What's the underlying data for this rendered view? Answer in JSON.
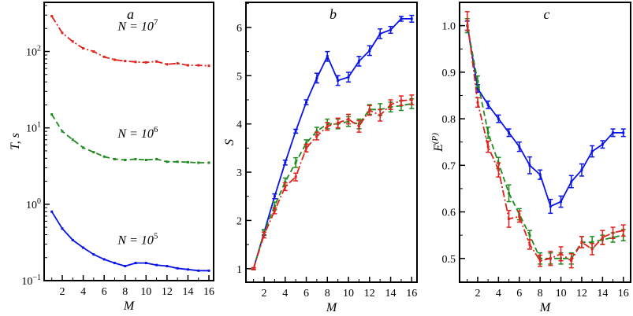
{
  "colors": {
    "n7": "#e3211c",
    "n6": "#1f8a1f",
    "n5": "#0a14e6",
    "frame": "#000000"
  },
  "chart_data": [
    {
      "type": "line",
      "panel": "a",
      "xlabel": "M",
      "ylabel": "T, s",
      "yscale": "log",
      "xlim": [
        0.27,
        16.45
      ],
      "ylim": [
        0.1,
        440
      ],
      "xticks": [
        2,
        4,
        6,
        8,
        10,
        12,
        14,
        16
      ],
      "xtick_labels": [
        "2",
        "4",
        "6",
        "8",
        "10",
        "12",
        "14",
        "16"
      ],
      "yticks": [
        {
          "value": 100,
          "base": "10",
          "exp": "2"
        },
        {
          "value": 10,
          "base": "10",
          "exp": "1"
        },
        {
          "value": 1,
          "base": "10",
          "exp": "0"
        },
        {
          "value": 0.1,
          "base": "10",
          "exp": "−1"
        }
      ],
      "x": [
        1,
        2,
        3,
        4,
        5,
        6,
        7,
        8,
        9,
        10,
        11,
        12,
        13,
        14,
        15,
        16
      ],
      "series": [
        {
          "name": "N = 10^7",
          "color_key": "n7",
          "dash": "dashdot",
          "label": {
            "base": "N = 10",
            "exp": "7"
          },
          "label_at": [
            7.3,
            190
          ],
          "values": [
            290,
            175,
            135,
            110,
            100,
            85,
            78,
            75,
            73,
            72,
            74,
            68,
            70,
            66,
            66,
            65
          ]
        },
        {
          "name": "N = 10^6",
          "color_key": "n6",
          "dash": "dash",
          "label": {
            "base": "N = 10",
            "exp": "6"
          },
          "label_at": [
            7.3,
            7.5
          ],
          "values": [
            15,
            9,
            7,
            5.5,
            4.8,
            4.2,
            3.9,
            3.8,
            3.9,
            3.8,
            3.9,
            3.6,
            3.6,
            3.55,
            3.5,
            3.5
          ]
        },
        {
          "name": "N = 10^5",
          "color_key": "n5",
          "dash": "solid",
          "label": {
            "base": "N = 10",
            "exp": "5"
          },
          "label_at": [
            7.3,
            0.3
          ],
          "values": [
            0.8,
            0.48,
            0.34,
            0.27,
            0.22,
            0.19,
            0.17,
            0.155,
            0.17,
            0.17,
            0.16,
            0.155,
            0.145,
            0.14,
            0.135,
            0.135
          ]
        }
      ]
    },
    {
      "type": "line",
      "panel": "b",
      "xlabel": "M",
      "ylabel": "S",
      "yscale": "linear",
      "xlim": [
        0.28,
        16.5
      ],
      "ylim": [
        0.72,
        6.52
      ],
      "xticks": [
        2,
        4,
        6,
        8,
        10,
        12,
        14,
        16
      ],
      "xtick_labels": [
        "2",
        "4",
        "6",
        "8",
        "10",
        "12",
        "14",
        "16"
      ],
      "yticks": [
        {
          "value": 1,
          "label": "1"
        },
        {
          "value": 2,
          "label": "2"
        },
        {
          "value": 3,
          "label": "3"
        },
        {
          "value": 4,
          "label": "4"
        },
        {
          "value": 5,
          "label": "5"
        },
        {
          "value": 6,
          "label": "6"
        }
      ],
      "x": [
        1,
        2,
        3,
        4,
        5,
        6,
        7,
        8,
        9,
        10,
        11,
        12,
        13,
        14,
        15,
        16
      ],
      "series": [
        {
          "name": "N = 10^5",
          "color_key": "n5",
          "dash": "solid",
          "values": [
            1,
            1.75,
            2.5,
            3.2,
            3.85,
            4.45,
            4.95,
            5.4,
            4.9,
            4.97,
            5.3,
            5.52,
            5.87,
            5.95,
            6.18,
            6.18
          ],
          "errors": [
            0.02,
            0.05,
            0.05,
            0.05,
            0.04,
            0.05,
            0.1,
            0.1,
            0.1,
            0.1,
            0.1,
            0.1,
            0.1,
            0.07,
            0.05,
            0.07
          ]
        },
        {
          "name": "N = 10^6",
          "color_key": "n6",
          "dash": "dash",
          "values": [
            1,
            1.75,
            2.3,
            2.8,
            3.2,
            3.6,
            3.85,
            4.0,
            4.0,
            4.05,
            4.0,
            4.3,
            4.3,
            4.35,
            4.38,
            4.42
          ],
          "errors": [
            0.02,
            0.06,
            0.08,
            0.08,
            0.1,
            0.07,
            0.08,
            0.1,
            0.1,
            0.1,
            0.1,
            0.1,
            0.12,
            0.1,
            0.1,
            0.1
          ]
        },
        {
          "name": "N = 10^7",
          "color_key": "n7",
          "dash": "dashdot",
          "values": [
            1,
            1.7,
            2.2,
            2.7,
            2.9,
            3.5,
            3.75,
            3.95,
            4.02,
            4.1,
            3.95,
            4.28,
            4.18,
            4.4,
            4.48,
            4.5
          ],
          "errors": [
            0.02,
            0.06,
            0.06,
            0.08,
            0.08,
            0.08,
            0.08,
            0.08,
            0.1,
            0.1,
            0.12,
            0.1,
            0.12,
            0.1,
            0.1,
            0.1
          ]
        }
      ]
    },
    {
      "type": "line",
      "panel": "c",
      "xlabel": "M",
      "ylabel": "E(P)",
      "ylabel_base": "E",
      "ylabel_sup": "(P)",
      "yscale": "linear",
      "xlim": [
        0.26,
        16.7
      ],
      "ylim": [
        0.449,
        1.05
      ],
      "xticks": [
        2,
        4,
        6,
        8,
        10,
        12,
        14,
        16
      ],
      "xtick_labels": [
        "2",
        "4",
        "6",
        "8",
        "10",
        "12",
        "14",
        "16"
      ],
      "yticks": [
        {
          "value": 0.5,
          "label": "0.5"
        },
        {
          "value": 0.6,
          "label": "0.6"
        },
        {
          "value": 0.7,
          "label": "0.7"
        },
        {
          "value": 0.8,
          "label": "0.8"
        },
        {
          "value": 0.9,
          "label": "0.9"
        },
        {
          "value": 1.0,
          "label": "1.0"
        }
      ],
      "x": [
        1,
        2,
        3,
        4,
        5,
        6,
        7,
        8,
        9,
        10,
        11,
        12,
        13,
        14,
        15,
        16
      ],
      "series": [
        {
          "name": "N = 10^5",
          "color_key": "n5",
          "dash": "solid",
          "values": [
            1.0,
            0.865,
            0.83,
            0.8,
            0.77,
            0.74,
            0.7,
            0.68,
            0.612,
            0.622,
            0.665,
            0.69,
            0.73,
            0.745,
            0.77,
            0.77
          ],
          "errors": [
            0.01,
            0.008,
            0.008,
            0.008,
            0.008,
            0.01,
            0.018,
            0.01,
            0.015,
            0.012,
            0.013,
            0.013,
            0.012,
            0.008,
            0.008,
            0.008
          ]
        },
        {
          "name": "N = 10^6",
          "color_key": "n6",
          "dash": "dash",
          "values": [
            1.0,
            0.88,
            0.77,
            0.705,
            0.64,
            0.595,
            0.55,
            0.5,
            0.5,
            0.5,
            0.5,
            0.535,
            0.535,
            0.54,
            0.545,
            0.55
          ],
          "errors": [
            0.015,
            0.012,
            0.012,
            0.012,
            0.018,
            0.012,
            0.01,
            0.012,
            0.012,
            0.012,
            0.012,
            0.012,
            0.012,
            0.01,
            0.01,
            0.012
          ]
        },
        {
          "name": "N = 10^7",
          "color_key": "n7",
          "dash": "dashdot",
          "values": [
            1.01,
            0.835,
            0.74,
            0.69,
            0.585,
            0.59,
            0.53,
            0.495,
            0.5,
            0.51,
            0.495,
            0.535,
            0.52,
            0.545,
            0.555,
            0.56
          ],
          "errors": [
            0.02,
            0.01,
            0.012,
            0.015,
            0.018,
            0.012,
            0.01,
            0.012,
            0.015,
            0.015,
            0.015,
            0.012,
            0.012,
            0.015,
            0.012,
            0.012
          ]
        }
      ]
    }
  ],
  "panels": [
    {
      "letter": "a",
      "xlabel": "M",
      "ylabel": "T, s"
    },
    {
      "letter": "b",
      "xlabel": "M",
      "ylabel": "S"
    },
    {
      "letter": "c",
      "xlabel": "M",
      "ylabel": "E"
    }
  ]
}
